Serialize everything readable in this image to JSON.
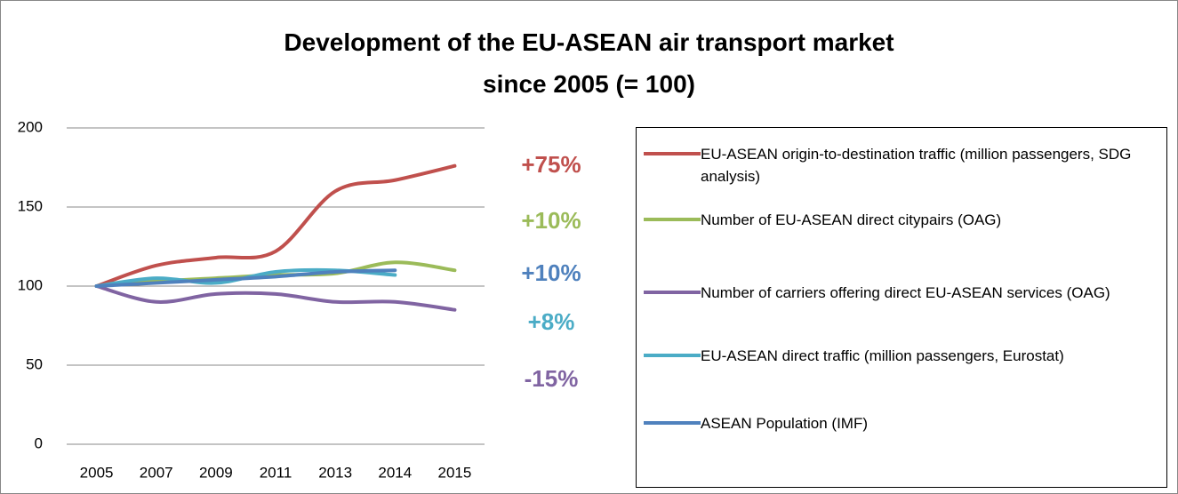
{
  "chart_data": {
    "type": "line",
    "title": "Development of the EU-ASEAN air transport market since 2005 (= 100)",
    "categories": [
      "2005",
      "2007",
      "2009",
      "2011",
      "2013",
      "2014",
      "2015"
    ],
    "ylim": [
      0,
      200
    ],
    "yticks": [
      0,
      50,
      100,
      150,
      200
    ],
    "grid": true,
    "legend": "right",
    "series": [
      {
        "name": "EU-ASEAN origin-to-destination traffic (million passengers, SDG analysis)",
        "color": "#c0504d",
        "values": [
          100,
          113,
          118,
          122,
          160,
          167,
          176
        ]
      },
      {
        "name": "Number of EU-ASEAN direct citypairs (OAG)",
        "color": "#9bbb59",
        "values": [
          100,
          103,
          105,
          107,
          108,
          115,
          110
        ]
      },
      {
        "name": "Number of carriers offering direct EU-ASEAN services (OAG)",
        "color": "#8064a2",
        "values": [
          100,
          90,
          95,
          95,
          90,
          90,
          85
        ]
      },
      {
        "name": "EU-ASEAN direct traffic (million passengers, Eurostat)",
        "color": "#4bacc6",
        "values": [
          100,
          105,
          102,
          109,
          110,
          107,
          null
        ]
      },
      {
        "name": "ASEAN Population (IMF)",
        "color": "#4f81bd",
        "values": [
          100,
          102,
          104,
          106,
          109,
          110,
          null
        ]
      }
    ],
    "annotations": [
      {
        "text": "+75%",
        "color": "#c0504d"
      },
      {
        "text": "+10%",
        "color": "#9bbb59"
      },
      {
        "text": "+10%",
        "color": "#4f81bd"
      },
      {
        "text": "+8%",
        "color": "#4bacc6"
      },
      {
        "text": "-15%",
        "color": "#8064a2"
      }
    ]
  }
}
